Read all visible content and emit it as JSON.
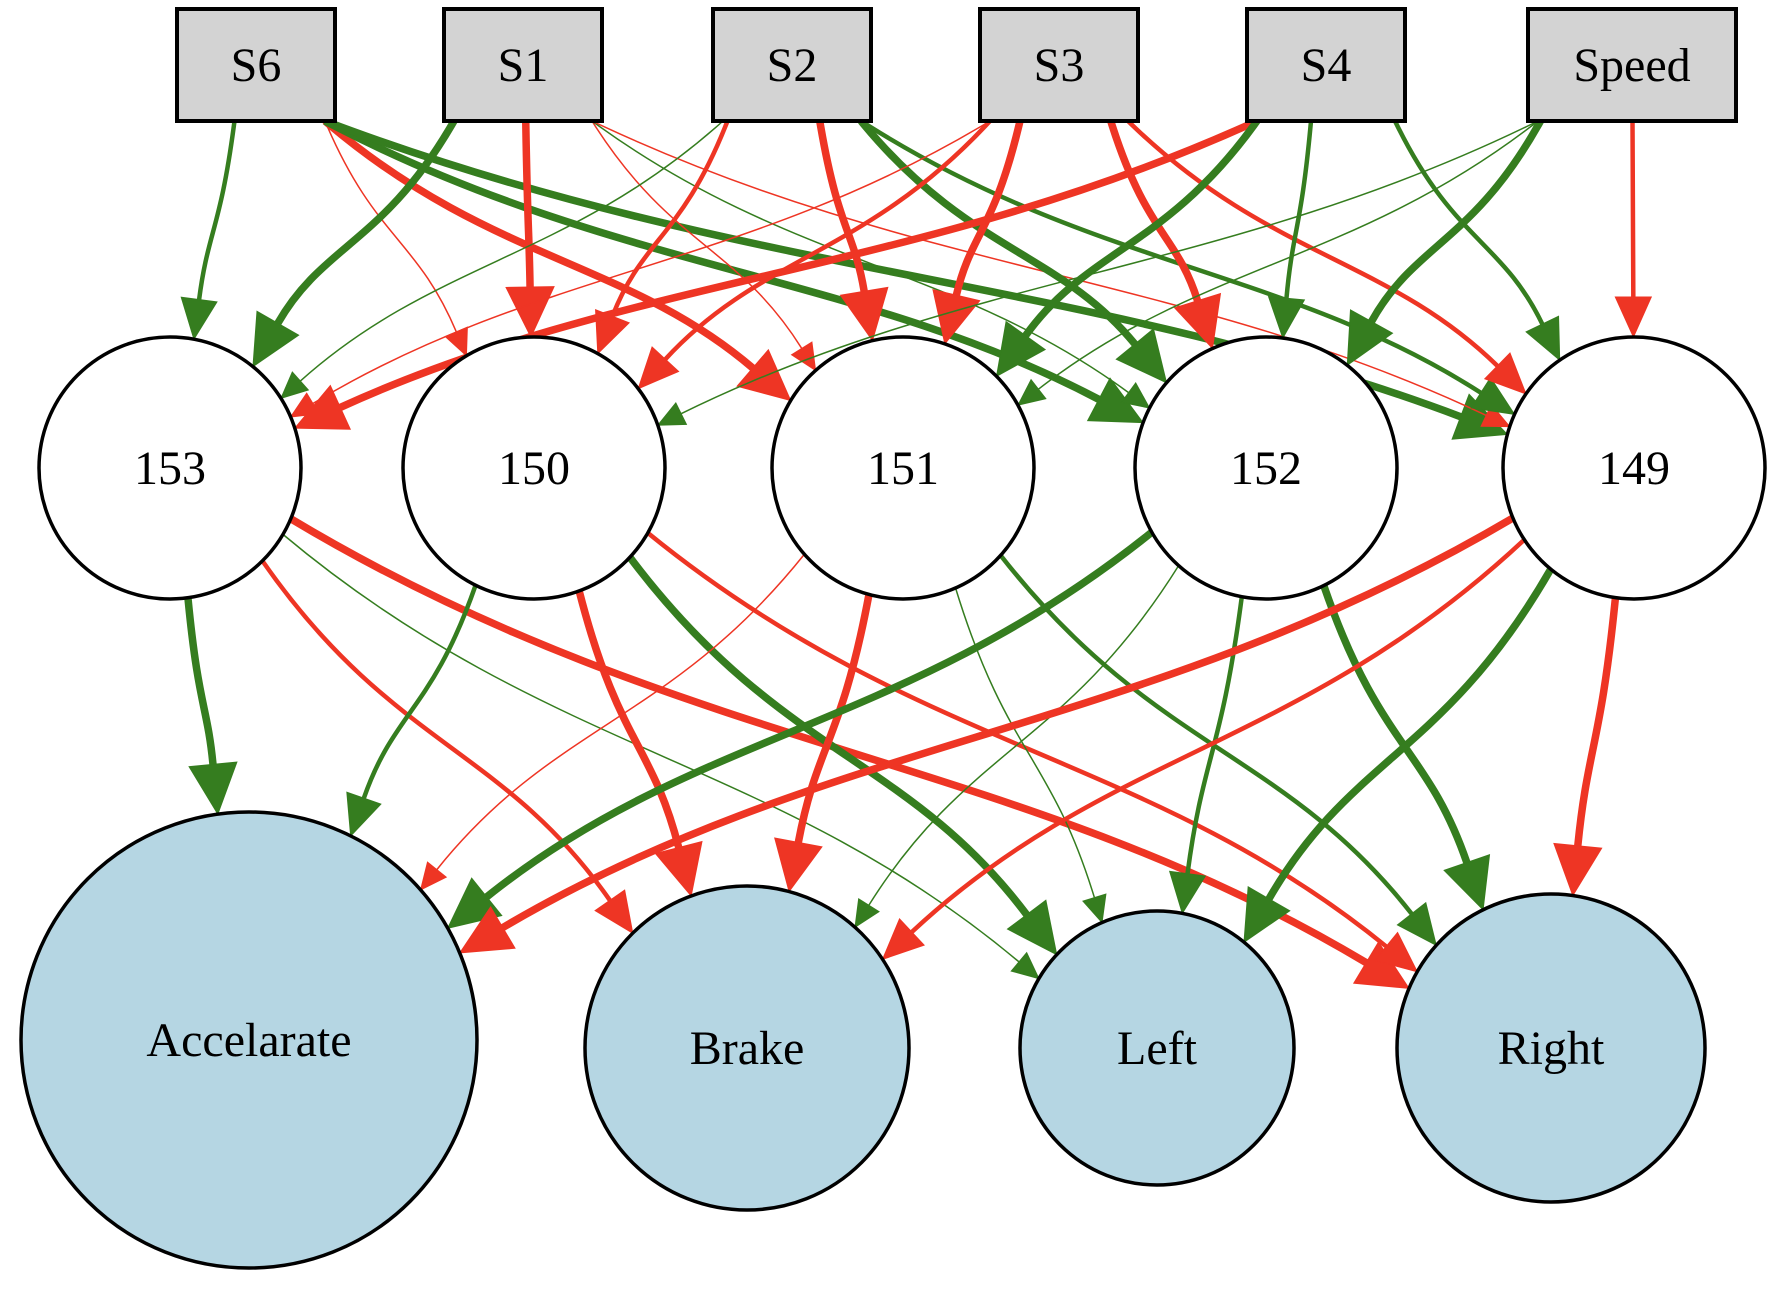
{
  "colors": {
    "positive": "#357D1F",
    "negative": "#EE3524",
    "input_fill": "#D3D3D3",
    "hidden_fill": "#FFFFFF",
    "output_fill": "#B5D6E3",
    "stroke": "#000000"
  },
  "inputs": [
    {
      "id": "S6",
      "label": "S6"
    },
    {
      "id": "S1",
      "label": "S1"
    },
    {
      "id": "S2",
      "label": "S2"
    },
    {
      "id": "S3",
      "label": "S3"
    },
    {
      "id": "S4",
      "label": "S4"
    },
    {
      "id": "Speed",
      "label": "Speed"
    }
  ],
  "hidden": [
    {
      "id": "153",
      "label": "153"
    },
    {
      "id": "150",
      "label": "150"
    },
    {
      "id": "151",
      "label": "151"
    },
    {
      "id": "152",
      "label": "152"
    },
    {
      "id": "149",
      "label": "149"
    }
  ],
  "outputs": [
    {
      "id": "Accelarate",
      "label": "Accelarate"
    },
    {
      "id": "Brake",
      "label": "Brake"
    },
    {
      "id": "Left",
      "label": "Left"
    },
    {
      "id": "Right",
      "label": "Right"
    }
  ],
  "edges": [
    {
      "from": "S6",
      "to": "153",
      "sign": "positive",
      "weight": 2
    },
    {
      "from": "S6",
      "to": "150",
      "sign": "negative",
      "weight": 1
    },
    {
      "from": "S6",
      "to": "151",
      "sign": "negative",
      "weight": 3
    },
    {
      "from": "S6",
      "to": "152",
      "sign": "positive",
      "weight": 3
    },
    {
      "from": "S6",
      "to": "149",
      "sign": "positive",
      "weight": 3
    },
    {
      "from": "S1",
      "to": "153",
      "sign": "positive",
      "weight": 3
    },
    {
      "from": "S1",
      "to": "150",
      "sign": "negative",
      "weight": 3
    },
    {
      "from": "S1",
      "to": "151",
      "sign": "negative",
      "weight": 1
    },
    {
      "from": "S1",
      "to": "152",
      "sign": "positive",
      "weight": 1
    },
    {
      "from": "S1",
      "to": "149",
      "sign": "negative",
      "weight": 1
    },
    {
      "from": "S2",
      "to": "153",
      "sign": "positive",
      "weight": 1
    },
    {
      "from": "S2",
      "to": "150",
      "sign": "negative",
      "weight": 2
    },
    {
      "from": "S2",
      "to": "151",
      "sign": "negative",
      "weight": 3
    },
    {
      "from": "S2",
      "to": "152",
      "sign": "positive",
      "weight": 3
    },
    {
      "from": "S2",
      "to": "149",
      "sign": "positive",
      "weight": 2
    },
    {
      "from": "S3",
      "to": "153",
      "sign": "negative",
      "weight": 1
    },
    {
      "from": "S3",
      "to": "150",
      "sign": "negative",
      "weight": 2
    },
    {
      "from": "S3",
      "to": "151",
      "sign": "negative",
      "weight": 3
    },
    {
      "from": "S3",
      "to": "152",
      "sign": "negative",
      "weight": 3
    },
    {
      "from": "S3",
      "to": "149",
      "sign": "negative",
      "weight": 2
    },
    {
      "from": "S4",
      "to": "153",
      "sign": "negative",
      "weight": 3
    },
    {
      "from": "S4",
      "to": "151",
      "sign": "positive",
      "weight": 3
    },
    {
      "from": "S4",
      "to": "152",
      "sign": "positive",
      "weight": 2
    },
    {
      "from": "S4",
      "to": "149",
      "sign": "positive",
      "weight": 2
    },
    {
      "from": "Speed",
      "to": "150",
      "sign": "positive",
      "weight": 1
    },
    {
      "from": "Speed",
      "to": "151",
      "sign": "positive",
      "weight": 1
    },
    {
      "from": "Speed",
      "to": "152",
      "sign": "positive",
      "weight": 3
    },
    {
      "from": "Speed",
      "to": "149",
      "sign": "negative",
      "weight": 2
    },
    {
      "from": "153",
      "to": "Accelarate",
      "sign": "positive",
      "weight": 3
    },
    {
      "from": "153",
      "to": "Brake",
      "sign": "negative",
      "weight": 2
    },
    {
      "from": "153",
      "to": "Left",
      "sign": "positive",
      "weight": 1
    },
    {
      "from": "153",
      "to": "Right",
      "sign": "negative",
      "weight": 3
    },
    {
      "from": "150",
      "to": "Accelarate",
      "sign": "positive",
      "weight": 2
    },
    {
      "from": "150",
      "to": "Brake",
      "sign": "negative",
      "weight": 3
    },
    {
      "from": "150",
      "to": "Left",
      "sign": "positive",
      "weight": 3
    },
    {
      "from": "150",
      "to": "Right",
      "sign": "negative",
      "weight": 2
    },
    {
      "from": "151",
      "to": "Accelarate",
      "sign": "negative",
      "weight": 1
    },
    {
      "from": "151",
      "to": "Brake",
      "sign": "negative",
      "weight": 3
    },
    {
      "from": "151",
      "to": "Left",
      "sign": "positive",
      "weight": 1
    },
    {
      "from": "151",
      "to": "Right",
      "sign": "positive",
      "weight": 2
    },
    {
      "from": "152",
      "to": "Accelarate",
      "sign": "positive",
      "weight": 3
    },
    {
      "from": "152",
      "to": "Brake",
      "sign": "positive",
      "weight": 1
    },
    {
      "from": "152",
      "to": "Left",
      "sign": "positive",
      "weight": 2
    },
    {
      "from": "152",
      "to": "Right",
      "sign": "positive",
      "weight": 3
    },
    {
      "from": "149",
      "to": "Accelarate",
      "sign": "negative",
      "weight": 3
    },
    {
      "from": "149",
      "to": "Brake",
      "sign": "negative",
      "weight": 2
    },
    {
      "from": "149",
      "to": "Left",
      "sign": "positive",
      "weight": 3
    },
    {
      "from": "149",
      "to": "Right",
      "sign": "negative",
      "weight": 3
    }
  ]
}
